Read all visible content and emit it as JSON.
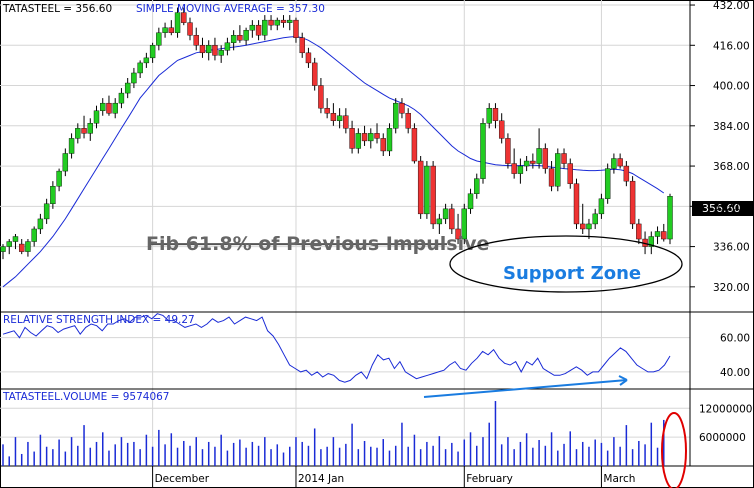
{
  "chart_data": [
    {
      "type": "candlestick",
      "title": "TATASTEEL = 356.60",
      "overlay_label": "SIMPLE MOVING AVERAGE = 357.30",
      "last_price_label": "356.60",
      "y_ticks": [
        "432.00",
        "416.00",
        "400.00",
        "384.00",
        "368.00",
        "352.00",
        "336.00",
        "320.00"
      ],
      "y_tick_values": [
        432,
        416,
        400,
        384,
        368,
        352,
        336,
        320
      ],
      "ylim": [
        310,
        434
      ],
      "x_labels": [
        {
          "label": "December",
          "index": 24
        },
        {
          "label": "2014 Jan",
          "index": 47
        },
        {
          "label": "February",
          "index": 74
        },
        {
          "label": "March",
          "index": 96
        }
      ],
      "candles": [
        [
          334,
          337,
          331,
          336
        ],
        [
          336,
          339,
          333,
          338
        ],
        [
          338,
          341,
          335,
          340
        ],
        [
          337,
          339,
          333,
          334
        ],
        [
          334,
          339,
          332,
          338
        ],
        [
          338,
          344,
          336,
          343
        ],
        [
          343,
          349,
          341,
          347
        ],
        [
          347,
          355,
          345,
          353
        ],
        [
          353,
          362,
          351,
          360
        ],
        [
          360,
          367,
          358,
          366
        ],
        [
          366,
          375,
          364,
          373
        ],
        [
          373,
          381,
          371,
          379
        ],
        [
          379,
          385,
          377,
          383
        ],
        [
          383,
          388,
          379,
          381
        ],
        [
          381,
          387,
          378,
          385
        ],
        [
          385,
          392,
          383,
          390
        ],
        [
          390,
          395,
          388,
          393
        ],
        [
          393,
          396,
          388,
          389
        ],
        [
          389,
          395,
          387,
          393
        ],
        [
          393,
          399,
          391,
          397
        ],
        [
          397,
          403,
          395,
          401
        ],
        [
          401,
          407,
          399,
          405
        ],
        [
          405,
          410,
          403,
          409
        ],
        [
          409,
          413,
          407,
          411
        ],
        [
          411,
          417,
          409,
          416
        ],
        [
          416,
          423,
          414,
          421
        ],
        [
          421,
          425,
          419,
          423
        ],
        [
          423,
          426,
          420,
          421
        ],
        [
          421,
          431,
          419,
          429
        ],
        [
          429,
          431,
          424,
          425
        ],
        [
          425,
          427,
          418,
          420
        ],
        [
          420,
          423,
          414,
          416
        ],
        [
          416,
          419,
          411,
          413
        ],
        [
          413,
          418,
          410,
          416
        ],
        [
          416,
          419,
          410,
          412
        ],
        [
          412,
          416,
          409,
          414
        ],
        [
          414,
          419,
          412,
          417
        ],
        [
          417,
          422,
          414,
          420
        ],
        [
          420,
          424,
          417,
          418
        ],
        [
          418,
          423,
          416,
          422
        ],
        [
          422,
          426,
          419,
          424
        ],
        [
          424,
          426,
          418,
          420
        ],
        [
          420,
          428,
          418,
          426
        ],
        [
          426,
          428,
          422,
          424
        ],
        [
          424,
          427,
          422,
          426
        ],
        [
          426,
          428,
          423,
          425
        ],
        [
          425,
          428,
          422,
          426
        ],
        [
          426,
          427,
          417,
          419
        ],
        [
          419,
          421,
          411,
          413
        ],
        [
          413,
          415,
          407,
          409
        ],
        [
          409,
          411,
          398,
          400
        ],
        [
          400,
          403,
          389,
          391
        ],
        [
          391,
          395,
          387,
          389
        ],
        [
          389,
          393,
          384,
          386
        ],
        [
          386,
          391,
          383,
          388
        ],
        [
          388,
          391,
          381,
          383
        ],
        [
          383,
          386,
          373,
          375
        ],
        [
          375,
          383,
          373,
          381
        ],
        [
          381,
          384,
          376,
          378
        ],
        [
          378,
          383,
          375,
          381
        ],
        [
          381,
          385,
          377,
          379
        ],
        [
          379,
          381,
          372,
          374
        ],
        [
          374,
          385,
          372,
          383
        ],
        [
          383,
          395,
          381,
          393
        ],
        [
          393,
          395,
          387,
          389
        ],
        [
          389,
          391,
          381,
          383
        ],
        [
          383,
          385,
          369,
          370
        ],
        [
          370,
          372,
          347,
          349
        ],
        [
          349,
          370,
          347,
          368
        ],
        [
          368,
          370,
          343,
          345
        ],
        [
          345,
          349,
          341,
          347
        ],
        [
          347,
          353,
          345,
          351
        ],
        [
          351,
          353,
          341,
          343
        ],
        [
          343,
          349,
          337,
          339
        ],
        [
          339,
          353,
          337,
          351
        ],
        [
          351,
          359,
          349,
          357
        ],
        [
          357,
          365,
          355,
          363
        ],
        [
          363,
          387,
          361,
          385
        ],
        [
          385,
          393,
          383,
          391
        ],
        [
          391,
          393,
          383,
          386
        ],
        [
          386,
          389,
          377,
          379
        ],
        [
          379,
          381,
          367,
          369
        ],
        [
          369,
          375,
          363,
          365
        ],
        [
          365,
          371,
          361,
          368
        ],
        [
          368,
          372,
          366,
          370
        ],
        [
          370,
          373,
          367,
          369
        ],
        [
          369,
          383,
          367,
          375
        ],
        [
          375,
          377,
          365,
          367
        ],
        [
          367,
          370,
          358,
          360
        ],
        [
          360,
          375,
          358,
          373
        ],
        [
          373,
          375,
          367,
          369
        ],
        [
          369,
          371,
          359,
          361
        ],
        [
          361,
          363,
          343,
          345
        ],
        [
          345,
          353,
          341,
          343
        ],
        [
          343,
          347,
          339,
          345
        ],
        [
          345,
          351,
          343,
          349
        ],
        [
          349,
          357,
          347,
          355
        ],
        [
          355,
          369,
          353,
          367
        ],
        [
          367,
          373,
          365,
          371
        ],
        [
          371,
          373,
          367,
          368
        ],
        [
          368,
          370,
          360,
          362
        ],
        [
          362,
          364,
          343,
          345
        ],
        [
          345,
          347,
          337,
          339
        ],
        [
          339,
          342,
          333,
          336
        ],
        [
          336,
          342,
          333,
          340
        ],
        [
          340,
          344,
          337,
          342
        ],
        [
          342,
          345,
          338,
          339
        ],
        [
          339,
          357,
          337,
          356
        ]
      ],
      "moving_average": [
        320.0,
        322.0,
        324.0,
        326.5,
        329.0,
        331.5,
        334.0,
        337.0,
        340.0,
        343.5,
        347.0,
        351.0,
        355.0,
        359.0,
        363.0,
        367.0,
        371.0,
        375.0,
        379.0,
        383.0,
        387.0,
        391.0,
        395.0,
        398.0,
        401.0,
        404.0,
        406.0,
        408.0,
        410.0,
        411.0,
        412.0,
        413.0,
        413.5,
        414.0,
        414.3,
        414.6,
        415.0,
        415.3,
        415.6,
        416.0,
        416.5,
        417.0,
        417.5,
        418.0,
        418.5,
        419.0,
        419.3,
        419.5,
        419.0,
        418.0,
        416.5,
        415.0,
        413.0,
        411.0,
        409.0,
        407.0,
        405.0,
        403.0,
        401.0,
        399.5,
        398.0,
        396.5,
        395.0,
        394.0,
        393.0,
        392.0,
        390.5,
        388.5,
        386.0,
        383.5,
        381.0,
        378.5,
        376.0,
        374.0,
        372.5,
        371.0,
        370.0,
        369.5,
        369.0,
        368.5,
        368.3,
        368.2,
        368.2,
        368.2,
        368.3,
        368.3,
        368.2,
        368.0,
        367.5,
        367.3,
        367.0,
        366.8,
        366.5,
        366.3,
        366.2,
        366.2,
        366.3,
        366.5,
        366.7,
        366.5,
        366.0,
        365.0,
        363.5,
        362.0,
        360.5,
        359.0,
        357.3
      ],
      "annotations": [
        {
          "text": "Fib 61.8% of Previous Impulsive",
          "level": 337
        },
        {
          "text": "Support Zone",
          "shape": "ellipse"
        }
      ]
    },
    {
      "type": "line",
      "title": "RELATIVE STRENGTH INDEX = 49.27",
      "y_ticks": [
        "60.00",
        "40.00"
      ],
      "y_tick_values": [
        60,
        40
      ],
      "ylim": [
        30,
        75
      ],
      "values": [
        62,
        63,
        64,
        60,
        66,
        63,
        61,
        64,
        67,
        66,
        63,
        65,
        66,
        67,
        62,
        66,
        68,
        67,
        64,
        68,
        68,
        70,
        71,
        69,
        72,
        72,
        73,
        71,
        74,
        73,
        70,
        70,
        68,
        66,
        67,
        68,
        66,
        68,
        71,
        69,
        70,
        72,
        68,
        70,
        72,
        71,
        70,
        72,
        64,
        61,
        56,
        50,
        44,
        42,
        40,
        41,
        38,
        40,
        37,
        39,
        38,
        35,
        34,
        35,
        38,
        40,
        36,
        44,
        50,
        47,
        48,
        42,
        46,
        40,
        38,
        36,
        37,
        38,
        39,
        40,
        41,
        44,
        46,
        42,
        41,
        45,
        48,
        52,
        50,
        53,
        48,
        45,
        44,
        46,
        40,
        46,
        44,
        48,
        42,
        40,
        38,
        38,
        39,
        41,
        43,
        41,
        38,
        40,
        40,
        44,
        48,
        51,
        54,
        52,
        48,
        44,
        42,
        40,
        40,
        41,
        44,
        49.27
      ],
      "trendline": "rising"
    },
    {
      "type": "bar",
      "title": "TATASTEEL.VOLUME = 9574067",
      "y_ticks": [
        "12000000",
        "6000000"
      ],
      "y_tick_values": [
        12000000,
        6000000
      ],
      "ylim": [
        0,
        16000000
      ],
      "values": [
        4500000,
        2000000,
        6000000,
        2500000,
        5000000,
        3000000,
        6500000,
        4000000,
        3500000,
        5500000,
        3000000,
        6000000,
        4200000,
        8500000,
        3800000,
        5000000,
        7000000,
        3200000,
        4500000,
        6000000,
        4800000,
        5000000,
        3500000,
        6500000,
        4000000,
        7500000,
        4500000,
        6800000,
        3800000,
        5200000,
        4200000,
        6000000,
        3500000,
        5000000,
        4000000,
        6500000,
        3200000,
        4800000,
        5500000,
        3800000,
        5000000,
        4200000,
        6000000,
        3500000,
        4500000,
        2800000,
        4000000,
        6000000,
        5000000,
        4200000,
        7800000,
        3500000,
        4000000,
        6000000,
        3800000,
        4600000,
        8800000,
        3500000,
        5200000,
        4000000,
        3800000,
        5600000,
        3200000,
        4200000,
        9000000,
        4000000,
        6500000,
        3500000,
        5000000,
        4200000,
        6200000,
        3500000,
        4800000,
        3000000,
        5500000,
        7000000,
        4200000,
        6000000,
        9000000,
        13500000,
        4500000,
        6000000,
        3500000,
        5000000,
        6800000,
        3800000,
        5400000,
        4200000,
        7000000,
        3200000,
        4600000,
        7200000,
        3500000,
        5000000,
        4000000,
        5500000,
        4800000,
        3200000,
        6000000,
        4000000,
        8500000,
        3500000,
        5200000,
        4500000,
        9000000,
        3800000,
        9574067
      ],
      "annotations": [
        {
          "shape": "ellipse",
          "color": "#e00000"
        }
      ]
    }
  ]
}
